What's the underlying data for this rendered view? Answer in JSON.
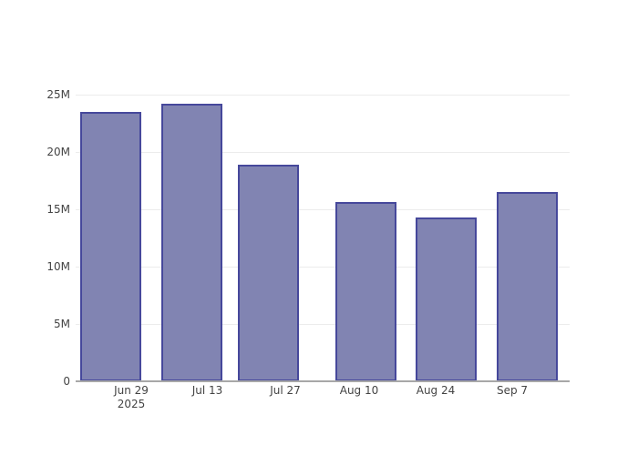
{
  "chart_data": {
    "type": "bar",
    "title": "",
    "xlabel": "",
    "ylabel": "",
    "categories": [
      "Jun 29 2025",
      "Jul 13",
      "Jul 27",
      "Aug 10",
      "Aug 24",
      "Sep 7"
    ],
    "x_tick_labels": [
      [
        "Jun 29",
        "2025"
      ],
      [
        "Jul 13"
      ],
      [
        "Jul 27"
      ],
      [
        "Aug 10"
      ],
      [
        "Aug 24"
      ],
      [
        "Sep 7"
      ]
    ],
    "values": [
      23500000,
      24200000,
      18900000,
      15600000,
      14300000,
      16500000
    ],
    "values_display": [
      "23.5M",
      "24.2M",
      "18.9M",
      "15.6M",
      "14.3M",
      "16.5M"
    ],
    "y_ticks": [
      {
        "value": 0,
        "label": "0"
      },
      {
        "value": 5000000,
        "label": "5M"
      },
      {
        "value": 10000000,
        "label": "10M"
      },
      {
        "value": 15000000,
        "label": "15M"
      },
      {
        "value": 20000000,
        "label": "20M"
      },
      {
        "value": 25000000,
        "label": "25M"
      }
    ],
    "ylim": [
      0,
      25000000
    ],
    "grid": true,
    "legend": false,
    "colors": {
      "bar_fill": "#8184b2",
      "bar_border": "#46489b",
      "grid": "#ececec",
      "axis_line": "#a8a8a8",
      "tick_text": "#444444",
      "background": "#ffffff"
    }
  }
}
